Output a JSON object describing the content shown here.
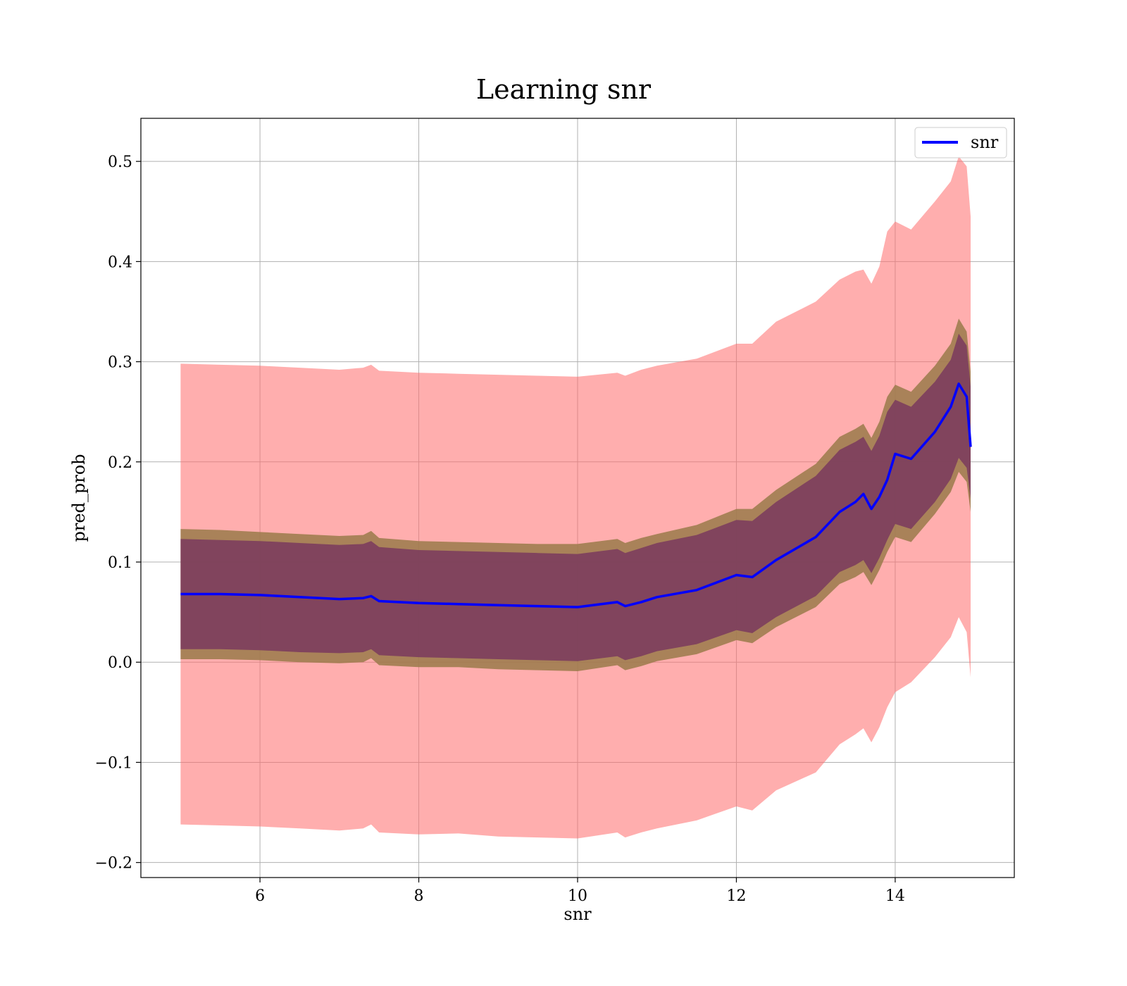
{
  "chart_data": {
    "type": "line",
    "title": "Learning snr",
    "xlabel": "snr",
    "ylabel": "pred_prob",
    "xlim": [
      4.5,
      15.5
    ],
    "ylim": [
      -0.215,
      0.543
    ],
    "xticks": [
      6,
      8,
      10,
      12,
      14
    ],
    "xtick_labels": [
      "6",
      "8",
      "10",
      "12",
      "14"
    ],
    "yticks": [
      -0.2,
      -0.1,
      0.0,
      0.1,
      0.2,
      0.3,
      0.4,
      0.5
    ],
    "ytick_labels": [
      "−0.2",
      "−0.1",
      "0.0",
      "0.1",
      "0.2",
      "0.3",
      "0.4",
      "0.5"
    ],
    "grid": true,
    "legend_position": "top-right",
    "colors": {
      "line": "#0000ff",
      "outer_band": "#ff6b6b",
      "middle_band": "#9a7a4a",
      "inner_band": "#7a3a5e",
      "grid": "#b0b0b0"
    },
    "series": [
      {
        "name": "snr",
        "x": [
          5.0,
          5.5,
          6.0,
          6.5,
          7.0,
          7.3,
          7.4,
          7.5,
          8.0,
          8.5,
          9.0,
          9.5,
          10.0,
          10.5,
          10.6,
          10.8,
          11.0,
          11.5,
          12.0,
          12.2,
          12.5,
          13.0,
          13.3,
          13.5,
          13.6,
          13.7,
          13.8,
          13.9,
          14.0,
          14.2,
          14.5,
          14.7,
          14.8,
          14.9,
          14.95
        ],
        "values": [
          0.068,
          0.068,
          0.067,
          0.065,
          0.063,
          0.064,
          0.066,
          0.061,
          0.059,
          0.058,
          0.057,
          0.056,
          0.055,
          0.06,
          0.056,
          0.06,
          0.065,
          0.072,
          0.087,
          0.085,
          0.102,
          0.125,
          0.15,
          0.16,
          0.168,
          0.153,
          0.165,
          0.182,
          0.208,
          0.203,
          0.23,
          0.255,
          0.278,
          0.265,
          0.215
        ]
      }
    ],
    "bands": [
      {
        "x": [
          5.0,
          5.5,
          6.0,
          6.5,
          7.0,
          7.3,
          7.4,
          7.5,
          8.0,
          8.5,
          9.0,
          9.5,
          10.0,
          10.5,
          10.6,
          10.8,
          11.0,
          11.5,
          12.0,
          12.2,
          12.5,
          13.0,
          13.3,
          13.5,
          13.6,
          13.7,
          13.8,
          13.9,
          14.0,
          14.2,
          14.5,
          14.7,
          14.8,
          14.9,
          14.95
        ],
        "upper": [
          0.298,
          0.297,
          0.296,
          0.294,
          0.292,
          0.294,
          0.297,
          0.291,
          0.289,
          0.288,
          0.287,
          0.286,
          0.285,
          0.289,
          0.286,
          0.292,
          0.296,
          0.303,
          0.318,
          0.318,
          0.34,
          0.36,
          0.382,
          0.39,
          0.392,
          0.378,
          0.395,
          0.43,
          0.44,
          0.432,
          0.46,
          0.48,
          0.505,
          0.495,
          0.445
        ],
        "lower": [
          -0.162,
          -0.163,
          -0.164,
          -0.166,
          -0.168,
          -0.166,
          -0.162,
          -0.17,
          -0.172,
          -0.171,
          -0.174,
          -0.175,
          -0.176,
          -0.17,
          -0.175,
          -0.17,
          -0.166,
          -0.158,
          -0.144,
          -0.148,
          -0.128,
          -0.11,
          -0.082,
          -0.072,
          -0.066,
          -0.08,
          -0.065,
          -0.045,
          -0.03,
          -0.02,
          0.005,
          0.025,
          0.045,
          0.03,
          -0.015
        ]
      },
      {
        "x": [
          5.0,
          5.5,
          6.0,
          6.5,
          7.0,
          7.3,
          7.4,
          7.5,
          8.0,
          8.5,
          9.0,
          9.5,
          10.0,
          10.5,
          10.6,
          10.8,
          11.0,
          11.5,
          12.0,
          12.2,
          12.5,
          13.0,
          13.3,
          13.5,
          13.6,
          13.7,
          13.8,
          13.9,
          14.0,
          14.2,
          14.5,
          14.7,
          14.8,
          14.9,
          14.95
        ],
        "upper": [
          0.133,
          0.132,
          0.13,
          0.128,
          0.126,
          0.127,
          0.131,
          0.124,
          0.121,
          0.12,
          0.119,
          0.118,
          0.118,
          0.123,
          0.119,
          0.124,
          0.128,
          0.137,
          0.153,
          0.153,
          0.172,
          0.198,
          0.225,
          0.233,
          0.238,
          0.224,
          0.24,
          0.265,
          0.277,
          0.27,
          0.296,
          0.318,
          0.343,
          0.33,
          0.29
        ],
        "lower": [
          0.003,
          0.003,
          0.002,
          0.0,
          -0.001,
          0.0,
          0.004,
          -0.003,
          -0.005,
          -0.005,
          -0.007,
          -0.008,
          -0.009,
          -0.003,
          -0.008,
          -0.004,
          0.001,
          0.008,
          0.022,
          0.019,
          0.035,
          0.055,
          0.078,
          0.085,
          0.09,
          0.077,
          0.092,
          0.11,
          0.125,
          0.12,
          0.148,
          0.17,
          0.19,
          0.18,
          0.15
        ]
      },
      {
        "x": [
          5.0,
          5.5,
          6.0,
          6.5,
          7.0,
          7.3,
          7.4,
          7.5,
          8.0,
          8.5,
          9.0,
          9.5,
          10.0,
          10.5,
          10.6,
          10.8,
          11.0,
          11.5,
          12.0,
          12.2,
          12.5,
          13.0,
          13.3,
          13.5,
          13.6,
          13.7,
          13.8,
          13.9,
          14.0,
          14.2,
          14.5,
          14.7,
          14.8,
          14.9,
          14.95
        ],
        "upper": [
          0.123,
          0.122,
          0.121,
          0.119,
          0.117,
          0.118,
          0.121,
          0.115,
          0.112,
          0.111,
          0.11,
          0.109,
          0.108,
          0.113,
          0.109,
          0.114,
          0.119,
          0.127,
          0.142,
          0.141,
          0.16,
          0.186,
          0.212,
          0.22,
          0.225,
          0.211,
          0.226,
          0.25,
          0.262,
          0.255,
          0.28,
          0.302,
          0.328,
          0.316,
          0.275
        ],
        "lower": [
          0.013,
          0.013,
          0.012,
          0.01,
          0.009,
          0.01,
          0.013,
          0.007,
          0.005,
          0.004,
          0.003,
          0.002,
          0.001,
          0.006,
          0.002,
          0.006,
          0.011,
          0.018,
          0.032,
          0.029,
          0.045,
          0.066,
          0.09,
          0.097,
          0.102,
          0.089,
          0.104,
          0.122,
          0.138,
          0.133,
          0.16,
          0.183,
          0.204,
          0.194,
          0.163
        ]
      }
    ]
  }
}
